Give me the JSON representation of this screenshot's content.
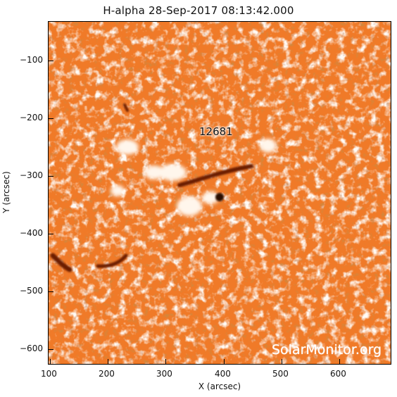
{
  "title": "H-alpha 28-Sep-2017 08:13:42.000",
  "xlabel": "X (arcsec)",
  "ylabel": "Y (arcsec)",
  "x_ticks": [
    "100",
    "200",
    "300",
    "400",
    "500",
    "600"
  ],
  "y_ticks": [
    "−100",
    "−200",
    "−300",
    "−400",
    "−500",
    "−600"
  ],
  "active_region": "12681",
  "watermark": "SolarMonitor.org",
  "colors": {
    "background": "#f07a28",
    "plage": "#fff4e8",
    "filament": "#6a1d05",
    "sunspot": "#2a0a02"
  }
}
